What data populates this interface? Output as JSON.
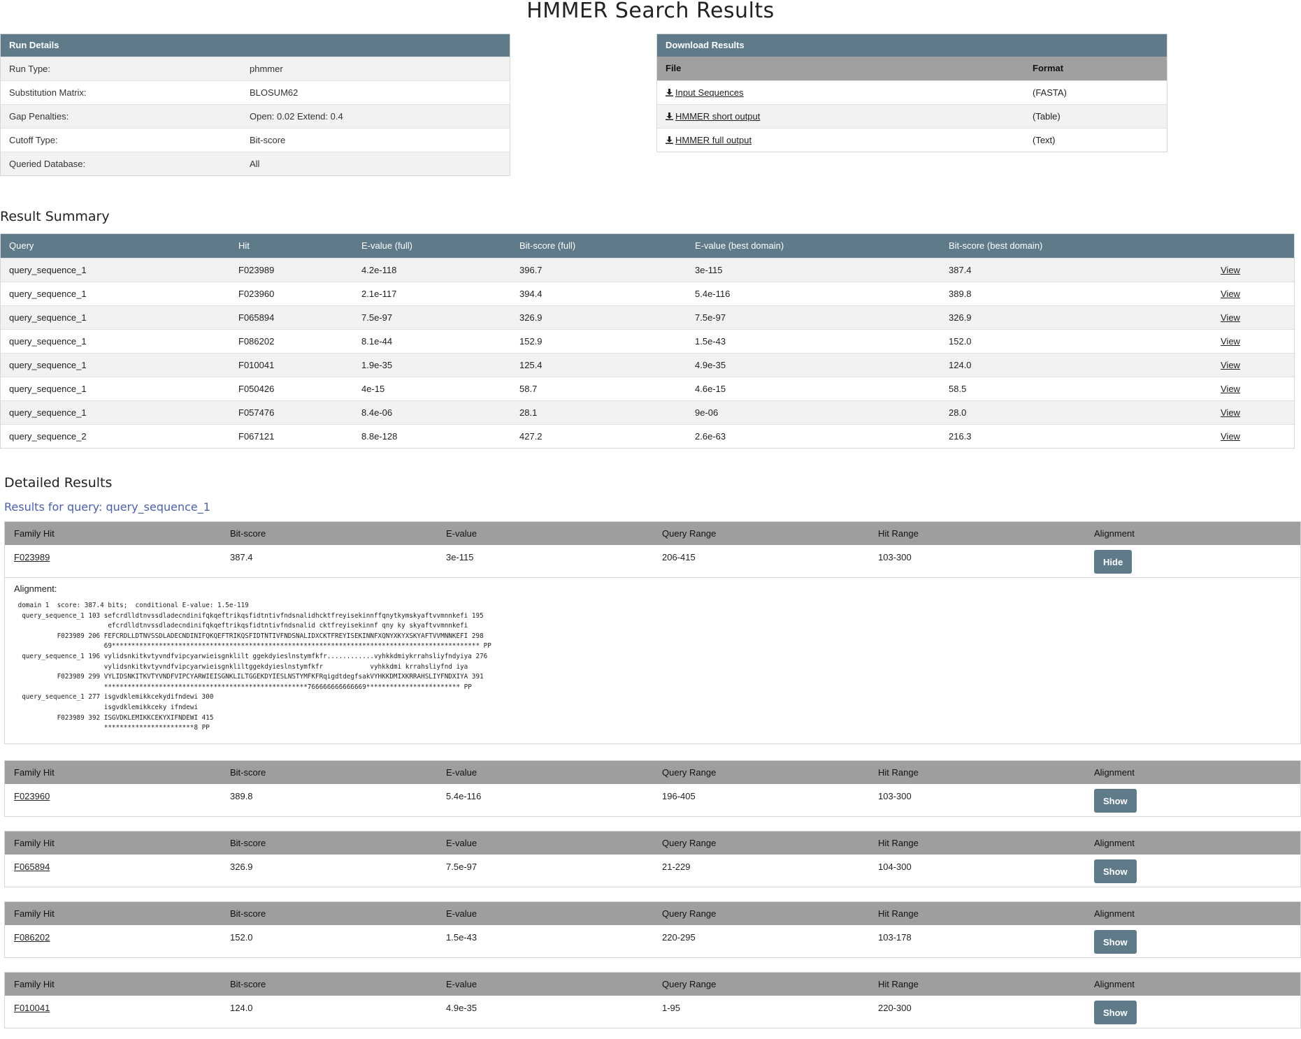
{
  "page": {
    "title": "HMMER Search Results"
  },
  "run_details": {
    "heading": "Run Details",
    "rows": [
      {
        "key": "Run Type:",
        "value": "phmmer"
      },
      {
        "key": "Substitution Matrix:",
        "value": "BLOSUM62"
      },
      {
        "key": "Gap Penalties:",
        "value": "Open: 0.02  Extend: 0.4"
      },
      {
        "key": "Cutoff Type:",
        "value": "Bit-score"
      },
      {
        "key": "Queried Database:",
        "value": "All"
      }
    ]
  },
  "downloads": {
    "heading": "Download Results",
    "col_file": "File",
    "col_format": "Format",
    "rows": [
      {
        "label": "Input Sequences",
        "format": "(FASTA)",
        "icon": "download-icon"
      },
      {
        "label": "HMMER short output",
        "format": "(Table)",
        "icon": "download-icon"
      },
      {
        "label": "HMMER full output",
        "format": "(Text)",
        "icon": "download-icon"
      }
    ]
  },
  "summary": {
    "heading": "Result Summary",
    "columns": [
      "Query",
      "Hit",
      "E-value (full)",
      "Bit-score (full)",
      "E-value (best domain)",
      "Bit-score (best domain)"
    ],
    "view_label": "View",
    "rows": [
      [
        "query_sequence_1",
        "F023989",
        "4.2e-118",
        "396.7",
        "3e-115",
        "387.4"
      ],
      [
        "query_sequence_1",
        "F023960",
        "2.1e-117",
        "394.4",
        "5.4e-116",
        "389.8"
      ],
      [
        "query_sequence_1",
        "F065894",
        "7.5e-97",
        "326.9",
        "7.5e-97",
        "326.9"
      ],
      [
        "query_sequence_1",
        "F086202",
        "8.1e-44",
        "152.9",
        "1.5e-43",
        "152.0"
      ],
      [
        "query_sequence_1",
        "F010041",
        "1.9e-35",
        "125.4",
        "4.9e-35",
        "124.0"
      ],
      [
        "query_sequence_1",
        "F050426",
        "4e-15",
        "58.7",
        "4.6e-15",
        "58.5"
      ],
      [
        "query_sequence_1",
        "F057476",
        "8.4e-06",
        "28.1",
        "9e-06",
        "28.0"
      ],
      [
        "query_sequence_2",
        "F067121",
        "8.8e-128",
        "427.2",
        "2.6e-63",
        "216.3"
      ]
    ]
  },
  "detailed": {
    "heading": "Detailed Results",
    "query_heading": "Results for query: query_sequence_1",
    "columns": [
      "Family Hit",
      "Bit-score",
      "E-value",
      "Query Range",
      "Hit Range",
      "Alignment"
    ],
    "alignment_label": "Alignment:",
    "hits": [
      {
        "family": "F023989",
        "bit": "387.4",
        "evalue": "3e-115",
        "qrange": "206-415",
        "hrange": "103-300",
        "button": "Hide"
      },
      {
        "family": "F023960",
        "bit": "389.8",
        "evalue": "5.4e-116",
        "qrange": "196-405",
        "hrange": "103-300",
        "button": "Show"
      },
      {
        "family": "F065894",
        "bit": "326.9",
        "evalue": "7.5e-97",
        "qrange": "21-229",
        "hrange": "104-300",
        "button": "Show"
      },
      {
        "family": "F086202",
        "bit": "152.0",
        "evalue": "1.5e-43",
        "qrange": "220-295",
        "hrange": "103-178",
        "button": "Show"
      },
      {
        "family": "F010041",
        "bit": "124.0",
        "evalue": "4.9e-35",
        "qrange": "1-95",
        "hrange": "220-300",
        "button": "Show"
      }
    ],
    "alignment_text": " domain 1  score: 387.4 bits;  conditional E-value: 1.5e-119\n  query_sequence_1 103 sefcrdlldtnvssdladecndinifqkqeftrikqsfidtntivfndsnalidhcktfreyisekinnffqnytkymskyaftvvmnnkefi 195\n                        efcrdlldtnvssdladecndinifqkqeftrikqsfidtntivfndsnalid cktfreyisekinnf qny ky skyaftvvmnnkefi\n           F023989 206 FEFCRDLLDTNVSSDLADECNDINIFQKQEFTRIKQSFIDTNTIVFNDSNALIDXCKTFREYISEKINNFXQNYXKYXSKYAFTVVMNNKEFI 298\n                       69********************************************************************************************** PP\n  query_sequence_1 196 vylidsnkitkvtyvndfvipcyarwieisgnklilt ggekdyieslnstymfkfr............vyhkkdmiykrrahsliyfndyiya 276\n                       vylidsnkitkvtyvndfvipcyarwieisgnkliltggekdyieslnstymfkfr            vyhkkdmi krrahsliyfnd iya\n           F023989 299 VYLIDSNKITKVTYVNDFVIPCYARWIEISGNKLILTGGEKDYIESLNSTYMFKFRqigdtdegfsakVYHKKDMIXKRRAHSLIYFNDXIYA 391\n                       ****************************************************766666666666669************************ PP\n  query_sequence_1 277 isgvdklemikkcekydifndewi 300\n                       isgvdklemikkceky ifndewi\n           F023989 392 ISGVDKLEMIKKCEKYXIFNDEWI 415\n                       ***********************8 PP"
  }
}
